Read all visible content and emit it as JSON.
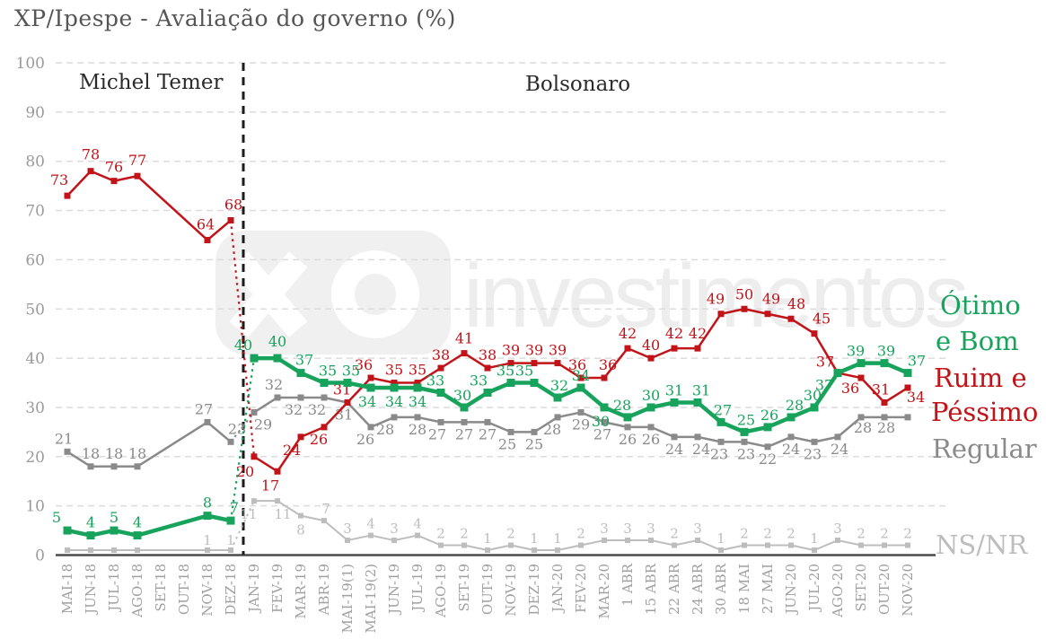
{
  "title": "XP/Ipespe - Avaliação do governo (%)",
  "period_annotations": {
    "left": "Michel Temer",
    "right": "Bolsonaro"
  },
  "watermark": {
    "logo_icon": "xp-logo-tile",
    "text": "investimentos"
  },
  "colors": {
    "otimo_e_bom": "#18A35C",
    "ruim_e_pessimo": "#C11318",
    "regular": "#8A8A8A",
    "ns_nr": "#BDBDBD",
    "grid": "#DCDCDC",
    "axis_line": "#4A4A4A",
    "axis_text": "#9A9A9A",
    "separator": "#1C1C1C"
  },
  "legend": [
    {
      "name": "Ótimo e Bom",
      "lines": [
        "Ótimo",
        "e Bom"
      ],
      "color": "#18A35C"
    },
    {
      "name": "Ruim e Péssimo",
      "lines": [
        "Ruim e",
        "Péssimo"
      ],
      "color": "#C11318"
    },
    {
      "name": "Regular",
      "lines": [
        "Regular"
      ],
      "color": "#8A8A8A"
    },
    {
      "name": "NS/NR",
      "lines": [
        "NS/NR"
      ],
      "color": "#BDBDBD"
    }
  ],
  "chart_data": {
    "type": "line",
    "title": "XP/Ipespe - Avaliação do governo (%)",
    "ylim": [
      0,
      100
    ],
    "yticks": [
      0,
      10,
      20,
      30,
      40,
      50,
      60,
      70,
      80,
      90,
      100
    ],
    "grid": "horizontal-dashed",
    "legend_position": "right",
    "period_separator_after": "DEZ-18",
    "no_data_categories": [
      "SET-18",
      "OUT-18"
    ],
    "categories": [
      "MAI-18",
      "JUN-18",
      "JUL-18",
      "AGO-18",
      "SET-18",
      "OUT-18",
      "NOV-18",
      "DEZ-18",
      "JAN-19",
      "FEV-19",
      "MAR-19",
      "ABR-19",
      "MAI-19(1)",
      "MAI-19(2)",
      "JUN-19",
      "JUL-19",
      "AGO-19",
      "SET-19",
      "OUT-19",
      "NOV-19",
      "DEZ-19",
      "JAN-20",
      "FEV-20",
      "MAR-20",
      "1 ABR",
      "15 ABR",
      "22 ABR",
      "24 ABR",
      "30 ABR",
      "18 MAI",
      "27 MAI",
      "JUN-20",
      "JUL-20",
      "AGO-20",
      "SET-20",
      "OUT-20",
      "NOV-20"
    ],
    "series": [
      {
        "name": "Ruim e Péssimo",
        "color": "#C11318",
        "values": [
          73,
          78,
          76,
          77,
          null,
          null,
          64,
          68,
          20,
          17,
          24,
          26,
          31,
          36,
          35,
          35,
          38,
          41,
          38,
          39,
          39,
          39,
          36,
          36,
          42,
          40,
          42,
          42,
          49,
          50,
          49,
          48,
          45,
          37,
          36,
          31,
          34
        ]
      },
      {
        "name": "Ótimo e Bom",
        "color": "#18A35C",
        "values": [
          5,
          4,
          5,
          4,
          null,
          null,
          8,
          7,
          40,
          40,
          37,
          35,
          35,
          34,
          34,
          34,
          33,
          30,
          33,
          35,
          35,
          32,
          34,
          30,
          28,
          30,
          31,
          31,
          27,
          25,
          26,
          28,
          30,
          37,
          39,
          39,
          37
        ]
      },
      {
        "name": "Regular",
        "color": "#8A8A8A",
        "values": [
          21,
          18,
          18,
          18,
          null,
          null,
          27,
          23,
          29,
          32,
          32,
          32,
          31,
          26,
          28,
          28,
          27,
          27,
          27,
          25,
          25,
          28,
          29,
          27,
          26,
          26,
          24,
          24,
          23,
          23,
          22,
          24,
          23,
          24,
          28,
          28,
          28
        ]
      },
      {
        "name": "NS/NR",
        "color": "#BDBDBD",
        "values": [
          1,
          1,
          1,
          1,
          null,
          null,
          1,
          1,
          11,
          11,
          8,
          7,
          3,
          4,
          3,
          4,
          2,
          2,
          1,
          2,
          1,
          1,
          2,
          3,
          3,
          3,
          2,
          3,
          1,
          2,
          2,
          2,
          1,
          3,
          2,
          2,
          2
        ]
      }
    ]
  }
}
